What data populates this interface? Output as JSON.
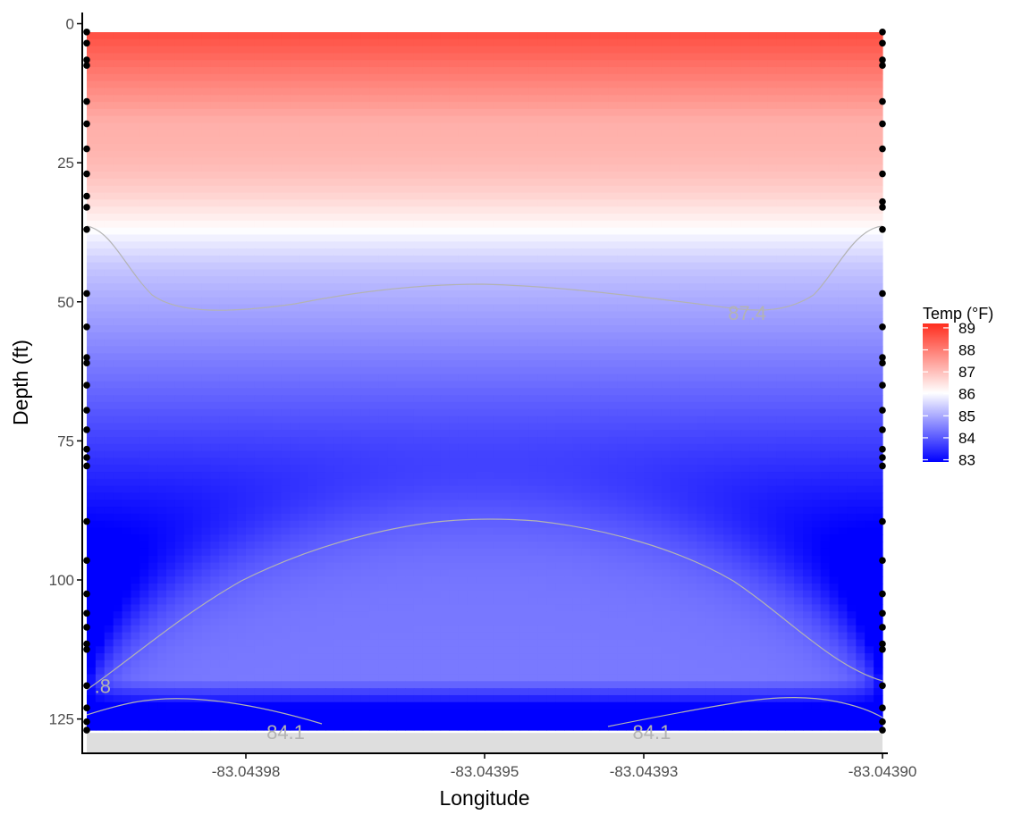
{
  "chart_data": {
    "type": "heatmap",
    "title": "",
    "xlabel": "Longitude",
    "ylabel": "Depth (ft)",
    "x_ticks": [
      "-83.04398",
      "-83.04395",
      "-83.04393",
      "-83.04390"
    ],
    "x_tick_values": [
      -83.04398,
      -83.04395,
      -83.04393,
      -83.0439
    ],
    "xlim": [
      -83.044,
      -83.0439
    ],
    "y_ticks": [
      "0",
      "25",
      "50",
      "75",
      "100",
      "125"
    ],
    "y_tick_values": [
      0,
      25,
      50,
      75,
      100,
      125
    ],
    "ylim": [
      0,
      131
    ],
    "y_reversed": true,
    "bottom_depth": 127.5,
    "legend": {
      "title": "Temp (°F)",
      "labels": [
        "89",
        "88",
        "87",
        "86",
        "85",
        "84",
        "83"
      ],
      "values": [
        89,
        88,
        87,
        86,
        85,
        84,
        83
      ],
      "range": [
        82.9,
        89.2
      ],
      "position": "right"
    },
    "colors": {
      "low": "#0000ff",
      "mid": "#ffffff",
      "high": "#ff2d1e",
      "bottom": "#dedede",
      "contour": "#b3b3b3"
    },
    "contour_labels": [
      {
        "text": "87.4",
        "x": -83.043917,
        "depth": 52
      },
      {
        "text": ".8",
        "x": -83.043998,
        "depth": 119
      },
      {
        "text": "84.1",
        "x": -83.043975,
        "depth": 127.3
      },
      {
        "text": "84.1",
        "x": -83.043929,
        "depth": 127.3
      }
    ],
    "casts": [
      {
        "longitude": -83.044,
        "depths": [
          1.5,
          3.5,
          6.5,
          7.5,
          14,
          18,
          22.5,
          27,
          31,
          33,
          37,
          48.5,
          54.5,
          60,
          61,
          65,
          69.5,
          73,
          76.5,
          78,
          79.5,
          89.5,
          96.5,
          102.5,
          106,
          108.5,
          111.5,
          112.5,
          119,
          123,
          125.5,
          127
        ]
      },
      {
        "longitude": -83.0439,
        "depths": [
          1.5,
          3.5,
          6.5,
          7.5,
          14,
          18,
          22.5,
          27,
          32,
          33,
          37,
          48.5,
          54.5,
          60,
          61,
          65,
          69.5,
          73,
          76.5,
          78,
          79.5,
          89.5,
          96.5,
          102.5,
          106,
          108.5,
          111.5,
          112.5,
          119,
          123,
          125.5,
          127
        ]
      }
    ]
  }
}
